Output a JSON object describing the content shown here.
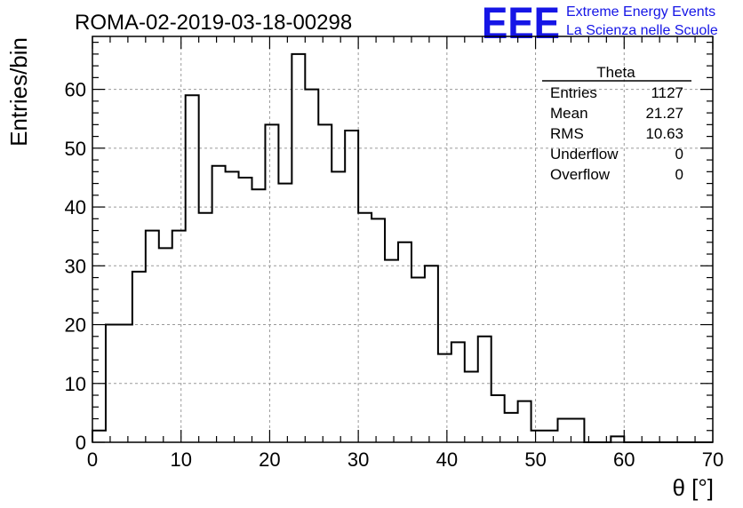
{
  "page_title": "ROMA-02-2019-03-18-00298",
  "logo": {
    "mark": "EEE",
    "line1": "Extreme Energy Events",
    "line2": "La Scienza nelle Scuole",
    "color": "#1515e6"
  },
  "stats": {
    "title": "Theta",
    "rows": [
      {
        "label": "Entries",
        "value": "1127"
      },
      {
        "label": "Mean",
        "value": "21.27"
      },
      {
        "label": "RMS",
        "value": "10.63"
      },
      {
        "label": "Underflow",
        "value": "0"
      },
      {
        "label": "Overflow",
        "value": "0"
      }
    ]
  },
  "chart_data": {
    "type": "bar",
    "histogram": true,
    "xlabel": "θ [°]",
    "ylabel": "Entries/bin",
    "xlim": [
      0,
      70
    ],
    "ylim": [
      0,
      69
    ],
    "bin_width": 1.5,
    "bin_start": 0,
    "x_ticks": [
      0,
      10,
      20,
      30,
      40,
      50,
      60,
      70
    ],
    "y_ticks": [
      0,
      10,
      20,
      30,
      40,
      50,
      60
    ],
    "grid": true,
    "values": [
      2,
      20,
      20,
      29,
      36,
      33,
      36,
      59,
      39,
      47,
      46,
      45,
      43,
      54,
      44,
      66,
      60,
      54,
      46,
      53,
      39,
      38,
      31,
      34,
      28,
      30,
      15,
      17,
      12,
      18,
      8,
      5,
      7,
      2,
      2,
      4,
      4,
      0,
      0,
      1,
      0,
      0,
      0,
      0,
      0,
      0,
      0
    ]
  }
}
